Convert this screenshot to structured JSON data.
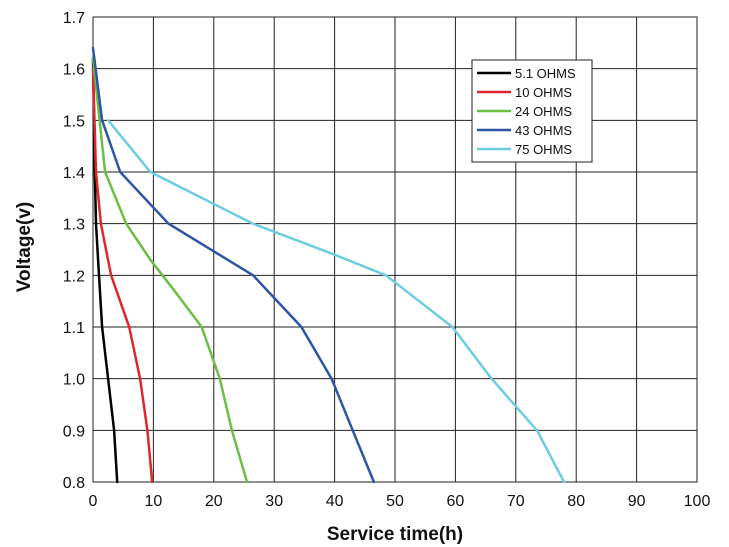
{
  "chart_data": {
    "type": "line",
    "title": "",
    "xlabel": "Service time(h)",
    "ylabel": "Voltage(v)",
    "xlim": [
      0,
      100
    ],
    "ylim": [
      0.8,
      1.7
    ],
    "x_ticks": [
      "0",
      "10",
      "20",
      "30",
      "40",
      "50",
      "60",
      "70",
      "80",
      "90",
      "100"
    ],
    "y_ticks": [
      "0.8",
      "0.9",
      "1.0",
      "1.1",
      "1.2",
      "1.3",
      "1.4",
      "1.5",
      "1.6",
      "1.7"
    ],
    "grid": true,
    "legend_position": "top-right",
    "series": [
      {
        "name": "5.1 OHMS",
        "color": "#000000",
        "points": [
          [
            0,
            1.62
          ],
          [
            0.3,
            1.4
          ],
          [
            0.5,
            1.3
          ],
          [
            1.0,
            1.2
          ],
          [
            1.5,
            1.1
          ],
          [
            2.5,
            1.0
          ],
          [
            3.5,
            0.9
          ],
          [
            4.0,
            0.8
          ]
        ]
      },
      {
        "name": "10 OHMS",
        "color": "#e0262a",
        "points": [
          [
            0,
            1.6
          ],
          [
            0.5,
            1.4
          ],
          [
            1.3,
            1.3
          ],
          [
            3.0,
            1.2
          ],
          [
            6.0,
            1.1
          ],
          [
            7.8,
            1.0
          ],
          [
            9.0,
            0.9
          ],
          [
            9.8,
            0.8
          ]
        ]
      },
      {
        "name": "24 OHMS",
        "color": "#6cbf45",
        "points": [
          [
            0,
            1.62
          ],
          [
            2.0,
            1.4
          ],
          [
            5.5,
            1.3
          ],
          [
            9.5,
            1.23
          ],
          [
            13.5,
            1.17
          ],
          [
            18.0,
            1.1
          ],
          [
            21.0,
            1.0
          ],
          [
            23.0,
            0.9
          ],
          [
            25.5,
            0.8
          ]
        ]
      },
      {
        "name": "43 OHMS",
        "color": "#2d55a5",
        "points": [
          [
            0,
            1.64
          ],
          [
            1.5,
            1.5
          ],
          [
            4.5,
            1.4
          ],
          [
            12.5,
            1.3
          ],
          [
            26.5,
            1.2
          ],
          [
            34.5,
            1.1
          ],
          [
            39.5,
            1.0
          ],
          [
            43.0,
            0.9
          ],
          [
            46.5,
            0.8
          ]
        ]
      },
      {
        "name": "75 OHMS",
        "color": "#6ccde0",
        "points": [
          [
            2.5,
            1.5
          ],
          [
            9.5,
            1.4
          ],
          [
            26.5,
            1.3
          ],
          [
            40.0,
            1.24
          ],
          [
            48.5,
            1.2
          ],
          [
            59.5,
            1.1
          ],
          [
            66.0,
            1.0
          ],
          [
            73.5,
            0.9
          ],
          [
            78.0,
            0.8
          ]
        ]
      }
    ]
  }
}
